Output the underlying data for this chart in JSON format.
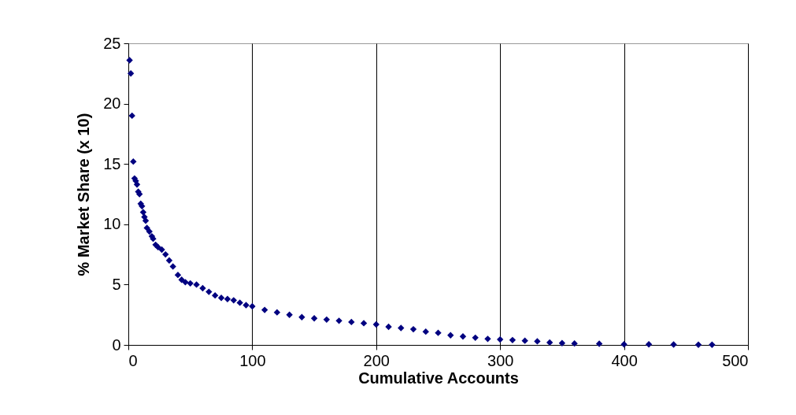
{
  "chart_data": {
    "type": "scatter",
    "xlabel": "Cumulative Accounts",
    "ylabel": "% Market Share (x 10)",
    "color": "#000080",
    "marker": "diamond",
    "grid": "x",
    "xlim": [
      0,
      500
    ],
    "ylim": [
      0,
      25
    ],
    "xticks": [
      0,
      100,
      200,
      300,
      400,
      500
    ],
    "yticks": [
      0,
      5,
      10,
      15,
      20,
      25
    ],
    "x": [
      1,
      2,
      3,
      4,
      5,
      6,
      7,
      8,
      9,
      10,
      11,
      12,
      13,
      14,
      15,
      17,
      19,
      20,
      22,
      24,
      27,
      30,
      33,
      36,
      40,
      43,
      46,
      50,
      55,
      60,
      65,
      70,
      75,
      80,
      85,
      90,
      95,
      100,
      110,
      120,
      130,
      140,
      150,
      160,
      170,
      180,
      190,
      200,
      210,
      220,
      230,
      240,
      250,
      260,
      270,
      280,
      290,
      300,
      310,
      320,
      330,
      340,
      350,
      360,
      380,
      400,
      420,
      440,
      460,
      471
    ],
    "values": [
      23.6,
      22.5,
      19,
      15.2,
      13.8,
      13.6,
      13.3,
      12.7,
      12.5,
      11.7,
      11.5,
      11,
      10.6,
      10.3,
      9.7,
      9.4,
      9,
      8.8,
      8.3,
      8.1,
      7.9,
      7.5,
      7,
      6.5,
      5.8,
      5.4,
      5.2,
      5.1,
      5,
      4.7,
      4.4,
      4.1,
      3.9,
      3.8,
      3.7,
      3.5,
      3.3,
      3.2,
      2.9,
      2.7,
      2.5,
      2.3,
      2.2,
      2.1,
      2,
      1.9,
      1.8,
      1.7,
      1.5,
      1.4,
      1.3,
      1.1,
      1,
      0.8,
      0.7,
      0.6,
      0.5,
      0.45,
      0.4,
      0.35,
      0.3,
      0.2,
      0.15,
      0.12,
      0.1,
      0.05,
      0.05,
      0.03,
      0.02,
      0.02
    ]
  }
}
